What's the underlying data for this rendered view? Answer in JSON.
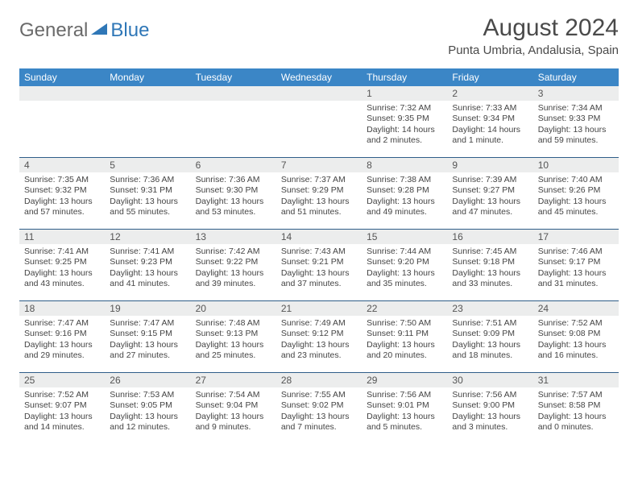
{
  "logo": {
    "word1": "General",
    "word2": "Blue",
    "icon_color": "#2f77b7"
  },
  "title": "August 2024",
  "location": "Punta Umbria, Andalusia, Spain",
  "colors": {
    "header_bg": "#3b86c6",
    "header_text": "#ffffff",
    "daynum_bg": "#eceded",
    "week_border": "#2f5d88",
    "body_text": "#444444"
  },
  "day_names": [
    "Sunday",
    "Monday",
    "Tuesday",
    "Wednesday",
    "Thursday",
    "Friday",
    "Saturday"
  ],
  "weeks": [
    [
      {
        "day": null
      },
      {
        "day": null
      },
      {
        "day": null
      },
      {
        "day": null
      },
      {
        "day": 1,
        "sunrise": "7:32 AM",
        "sunset": "9:35 PM",
        "daylight": "14 hours and 2 minutes."
      },
      {
        "day": 2,
        "sunrise": "7:33 AM",
        "sunset": "9:34 PM",
        "daylight": "14 hours and 1 minute."
      },
      {
        "day": 3,
        "sunrise": "7:34 AM",
        "sunset": "9:33 PM",
        "daylight": "13 hours and 59 minutes."
      }
    ],
    [
      {
        "day": 4,
        "sunrise": "7:35 AM",
        "sunset": "9:32 PM",
        "daylight": "13 hours and 57 minutes."
      },
      {
        "day": 5,
        "sunrise": "7:36 AM",
        "sunset": "9:31 PM",
        "daylight": "13 hours and 55 minutes."
      },
      {
        "day": 6,
        "sunrise": "7:36 AM",
        "sunset": "9:30 PM",
        "daylight": "13 hours and 53 minutes."
      },
      {
        "day": 7,
        "sunrise": "7:37 AM",
        "sunset": "9:29 PM",
        "daylight": "13 hours and 51 minutes."
      },
      {
        "day": 8,
        "sunrise": "7:38 AM",
        "sunset": "9:28 PM",
        "daylight": "13 hours and 49 minutes."
      },
      {
        "day": 9,
        "sunrise": "7:39 AM",
        "sunset": "9:27 PM",
        "daylight": "13 hours and 47 minutes."
      },
      {
        "day": 10,
        "sunrise": "7:40 AM",
        "sunset": "9:26 PM",
        "daylight": "13 hours and 45 minutes."
      }
    ],
    [
      {
        "day": 11,
        "sunrise": "7:41 AM",
        "sunset": "9:25 PM",
        "daylight": "13 hours and 43 minutes."
      },
      {
        "day": 12,
        "sunrise": "7:41 AM",
        "sunset": "9:23 PM",
        "daylight": "13 hours and 41 minutes."
      },
      {
        "day": 13,
        "sunrise": "7:42 AM",
        "sunset": "9:22 PM",
        "daylight": "13 hours and 39 minutes."
      },
      {
        "day": 14,
        "sunrise": "7:43 AM",
        "sunset": "9:21 PM",
        "daylight": "13 hours and 37 minutes."
      },
      {
        "day": 15,
        "sunrise": "7:44 AM",
        "sunset": "9:20 PM",
        "daylight": "13 hours and 35 minutes."
      },
      {
        "day": 16,
        "sunrise": "7:45 AM",
        "sunset": "9:18 PM",
        "daylight": "13 hours and 33 minutes."
      },
      {
        "day": 17,
        "sunrise": "7:46 AM",
        "sunset": "9:17 PM",
        "daylight": "13 hours and 31 minutes."
      }
    ],
    [
      {
        "day": 18,
        "sunrise": "7:47 AM",
        "sunset": "9:16 PM",
        "daylight": "13 hours and 29 minutes."
      },
      {
        "day": 19,
        "sunrise": "7:47 AM",
        "sunset": "9:15 PM",
        "daylight": "13 hours and 27 minutes."
      },
      {
        "day": 20,
        "sunrise": "7:48 AM",
        "sunset": "9:13 PM",
        "daylight": "13 hours and 25 minutes."
      },
      {
        "day": 21,
        "sunrise": "7:49 AM",
        "sunset": "9:12 PM",
        "daylight": "13 hours and 23 minutes."
      },
      {
        "day": 22,
        "sunrise": "7:50 AM",
        "sunset": "9:11 PM",
        "daylight": "13 hours and 20 minutes."
      },
      {
        "day": 23,
        "sunrise": "7:51 AM",
        "sunset": "9:09 PM",
        "daylight": "13 hours and 18 minutes."
      },
      {
        "day": 24,
        "sunrise": "7:52 AM",
        "sunset": "9:08 PM",
        "daylight": "13 hours and 16 minutes."
      }
    ],
    [
      {
        "day": 25,
        "sunrise": "7:52 AM",
        "sunset": "9:07 PM",
        "daylight": "13 hours and 14 minutes."
      },
      {
        "day": 26,
        "sunrise": "7:53 AM",
        "sunset": "9:05 PM",
        "daylight": "13 hours and 12 minutes."
      },
      {
        "day": 27,
        "sunrise": "7:54 AM",
        "sunset": "9:04 PM",
        "daylight": "13 hours and 9 minutes."
      },
      {
        "day": 28,
        "sunrise": "7:55 AM",
        "sunset": "9:02 PM",
        "daylight": "13 hours and 7 minutes."
      },
      {
        "day": 29,
        "sunrise": "7:56 AM",
        "sunset": "9:01 PM",
        "daylight": "13 hours and 5 minutes."
      },
      {
        "day": 30,
        "sunrise": "7:56 AM",
        "sunset": "9:00 PM",
        "daylight": "13 hours and 3 minutes."
      },
      {
        "day": 31,
        "sunrise": "7:57 AM",
        "sunset": "8:58 PM",
        "daylight": "13 hours and 0 minutes."
      }
    ]
  ],
  "labels": {
    "sunrise": "Sunrise:",
    "sunset": "Sunset:",
    "daylight": "Daylight:"
  }
}
